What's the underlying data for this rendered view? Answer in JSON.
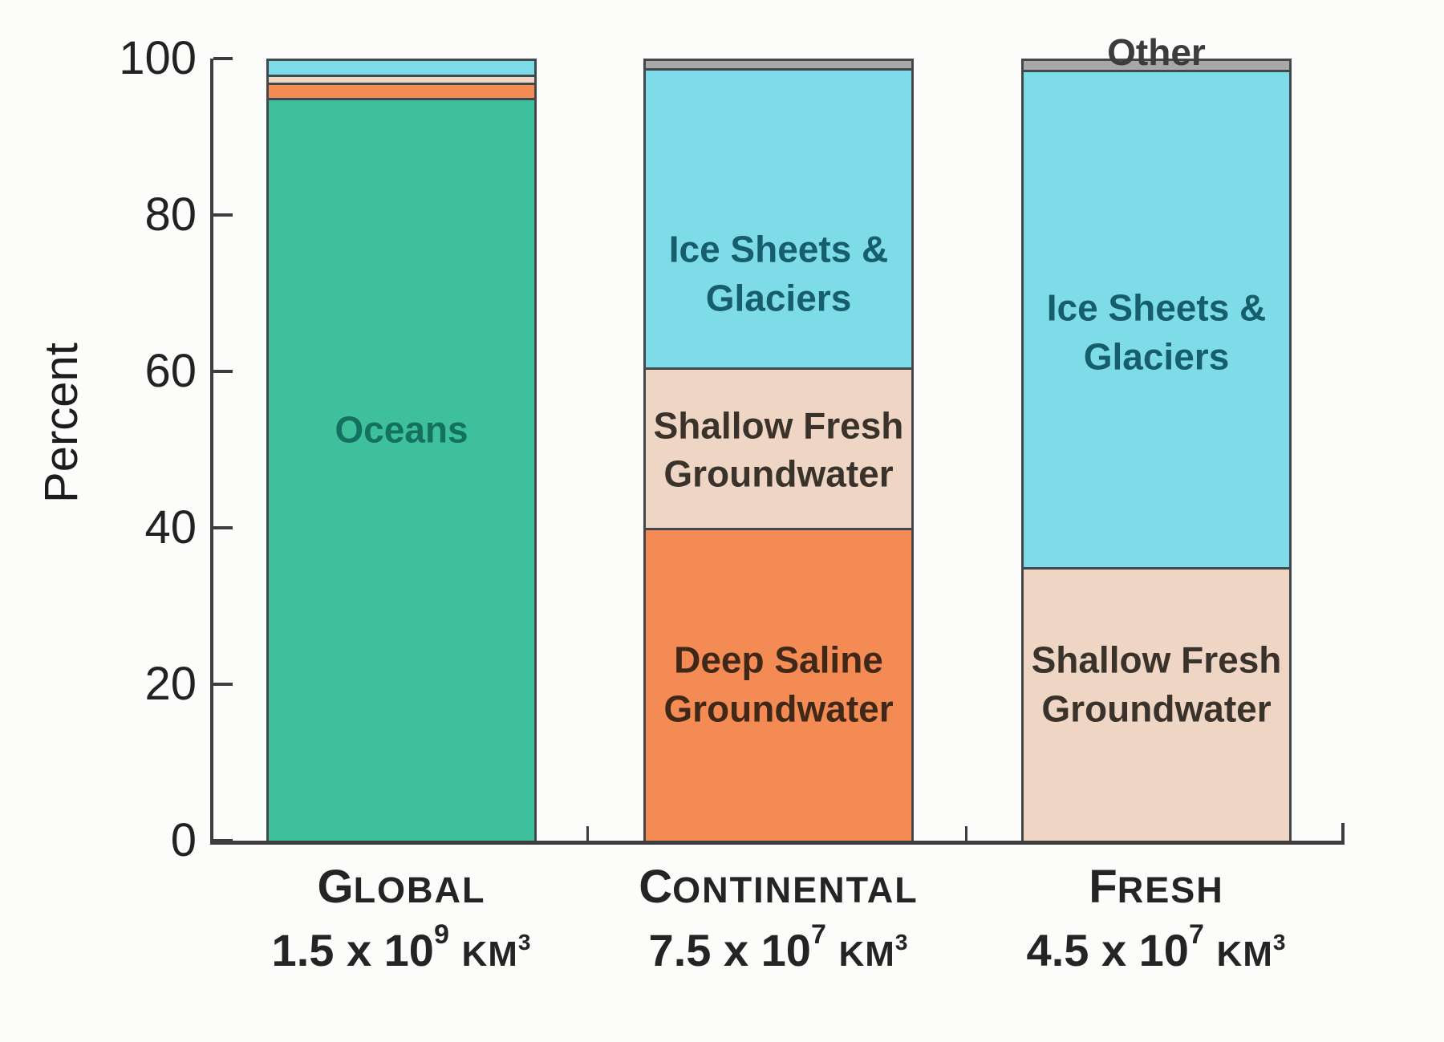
{
  "chart_data": {
    "type": "bar",
    "stacked": true,
    "orientation": "vertical",
    "title": "",
    "xlabel": "",
    "ylabel": "Percent",
    "ylim": [
      0,
      100
    ],
    "yticks": [
      100,
      80,
      60,
      40,
      20,
      0
    ],
    "grid": false,
    "legend_position": "none (labels drawn inside segments)",
    "categories": [
      "Global",
      "Continental",
      "Fresh"
    ],
    "category_labels_display": [
      "GLOBAL",
      "CONTINENTAL",
      "FRESH"
    ],
    "category_volumes": [
      "1.5 x 10^9 km^3",
      "7.5 x 10^7 km^3",
      "4.5 x 10^7 km^3"
    ],
    "series": [
      {
        "name": "Oceans",
        "color": "#3FC09C",
        "values": [
          95,
          0,
          0
        ]
      },
      {
        "name": "Deep Saline Groundwater",
        "color": "#F58B54",
        "values": [
          1.9,
          40,
          0
        ]
      },
      {
        "name": "Shallow Fresh Groundwater",
        "color": "#EFD5C4",
        "values": [
          1.1,
          20.5,
          35
        ]
      },
      {
        "name": "Ice Sheets & Glaciers",
        "color": "#7EDCE8",
        "values": [
          2.0,
          38.3,
          63.6
        ]
      },
      {
        "name": "Other",
        "color": "#A8A8A8",
        "values": [
          0,
          1.2,
          1.4
        ]
      }
    ]
  },
  "axis": {
    "ylabel": "Percent",
    "ytick_labels": [
      "100",
      "80",
      "60",
      "40",
      "20",
      "0"
    ]
  },
  "bars": [
    {
      "id": "global",
      "axis_label": {
        "initial": "G",
        "rest": "LOBAL"
      },
      "volume": {
        "coeff": "1.5",
        "times": "x",
        "base": "10",
        "exponent": "9",
        "unit": "KM",
        "unit_exponent": "3"
      },
      "segments": [
        {
          "name": "Oceans",
          "value": 95,
          "color": "#3FC09C",
          "label_lines": [
            "Oceans"
          ],
          "label_color": "#14705F",
          "label_center_pct": 52.5
        },
        {
          "name": "Deep Saline Groundwater",
          "value": 1.9,
          "color": "#F58B54"
        },
        {
          "name": "Shallow Fresh Groundwater",
          "value": 1.1,
          "color": "#EFD5C4"
        },
        {
          "name": "Ice Sheets & Glaciers",
          "value": 2.0,
          "color": "#7EDCE8"
        }
      ]
    },
    {
      "id": "continental",
      "axis_label": {
        "initial": "C",
        "rest": "ONTINENTAL"
      },
      "volume": {
        "coeff": "7.5",
        "times": "x",
        "base": "10",
        "exponent": "7",
        "unit": "KM",
        "unit_exponent": "3"
      },
      "segments": [
        {
          "name": "Deep Saline Groundwater",
          "value": 40,
          "color": "#F58B54",
          "label_lines": [
            "Deep Saline",
            "Groundwater"
          ],
          "label_color": "#3F2817",
          "label_center_pct": 20
        },
        {
          "name": "Shallow Fresh Groundwater",
          "value": 20.5,
          "color": "#EFD5C4",
          "label_lines": [
            "Shallow Fresh",
            "Groundwater"
          ],
          "label_color": "#3A332B",
          "label_center_pct": 50
        },
        {
          "name": "Ice Sheets & Glaciers",
          "value": 38.3,
          "color": "#7EDCE8",
          "label_lines": [
            "Ice Sheets &",
            "Glaciers"
          ],
          "label_color": "#165E6B",
          "label_center_pct": 72.5
        },
        {
          "name": "Other",
          "value": 1.2,
          "color": "#A8A8A8"
        }
      ]
    },
    {
      "id": "fresh",
      "axis_label": {
        "initial": "F",
        "rest": "RESH"
      },
      "volume": {
        "coeff": "4.5",
        "times": "x",
        "base": "10",
        "exponent": "7",
        "unit": "KM",
        "unit_exponent": "3"
      },
      "segments": [
        {
          "name": "Shallow Fresh Groundwater",
          "value": 35,
          "color": "#EFD5C4",
          "label_lines": [
            "Shallow Fresh",
            "Groundwater"
          ],
          "label_color": "#3A332B",
          "label_center_pct": 20
        },
        {
          "name": "Ice Sheets & Glaciers",
          "value": 63.6,
          "color": "#7EDCE8",
          "label_lines": [
            "Ice Sheets &",
            "Glaciers"
          ],
          "label_color": "#165E6B",
          "label_center_pct": 65
        },
        {
          "name": "Other",
          "value": 1.4,
          "color": "#A8A8A8",
          "floating_label": "Other",
          "floating_label_color": "#3C3C3C"
        }
      ]
    }
  ],
  "colors": {
    "background": "#FCFCFB",
    "axis": "#3D3D3D",
    "bar_border": "#43484D",
    "tick_text": "#222222",
    "category_text": "#242424"
  }
}
